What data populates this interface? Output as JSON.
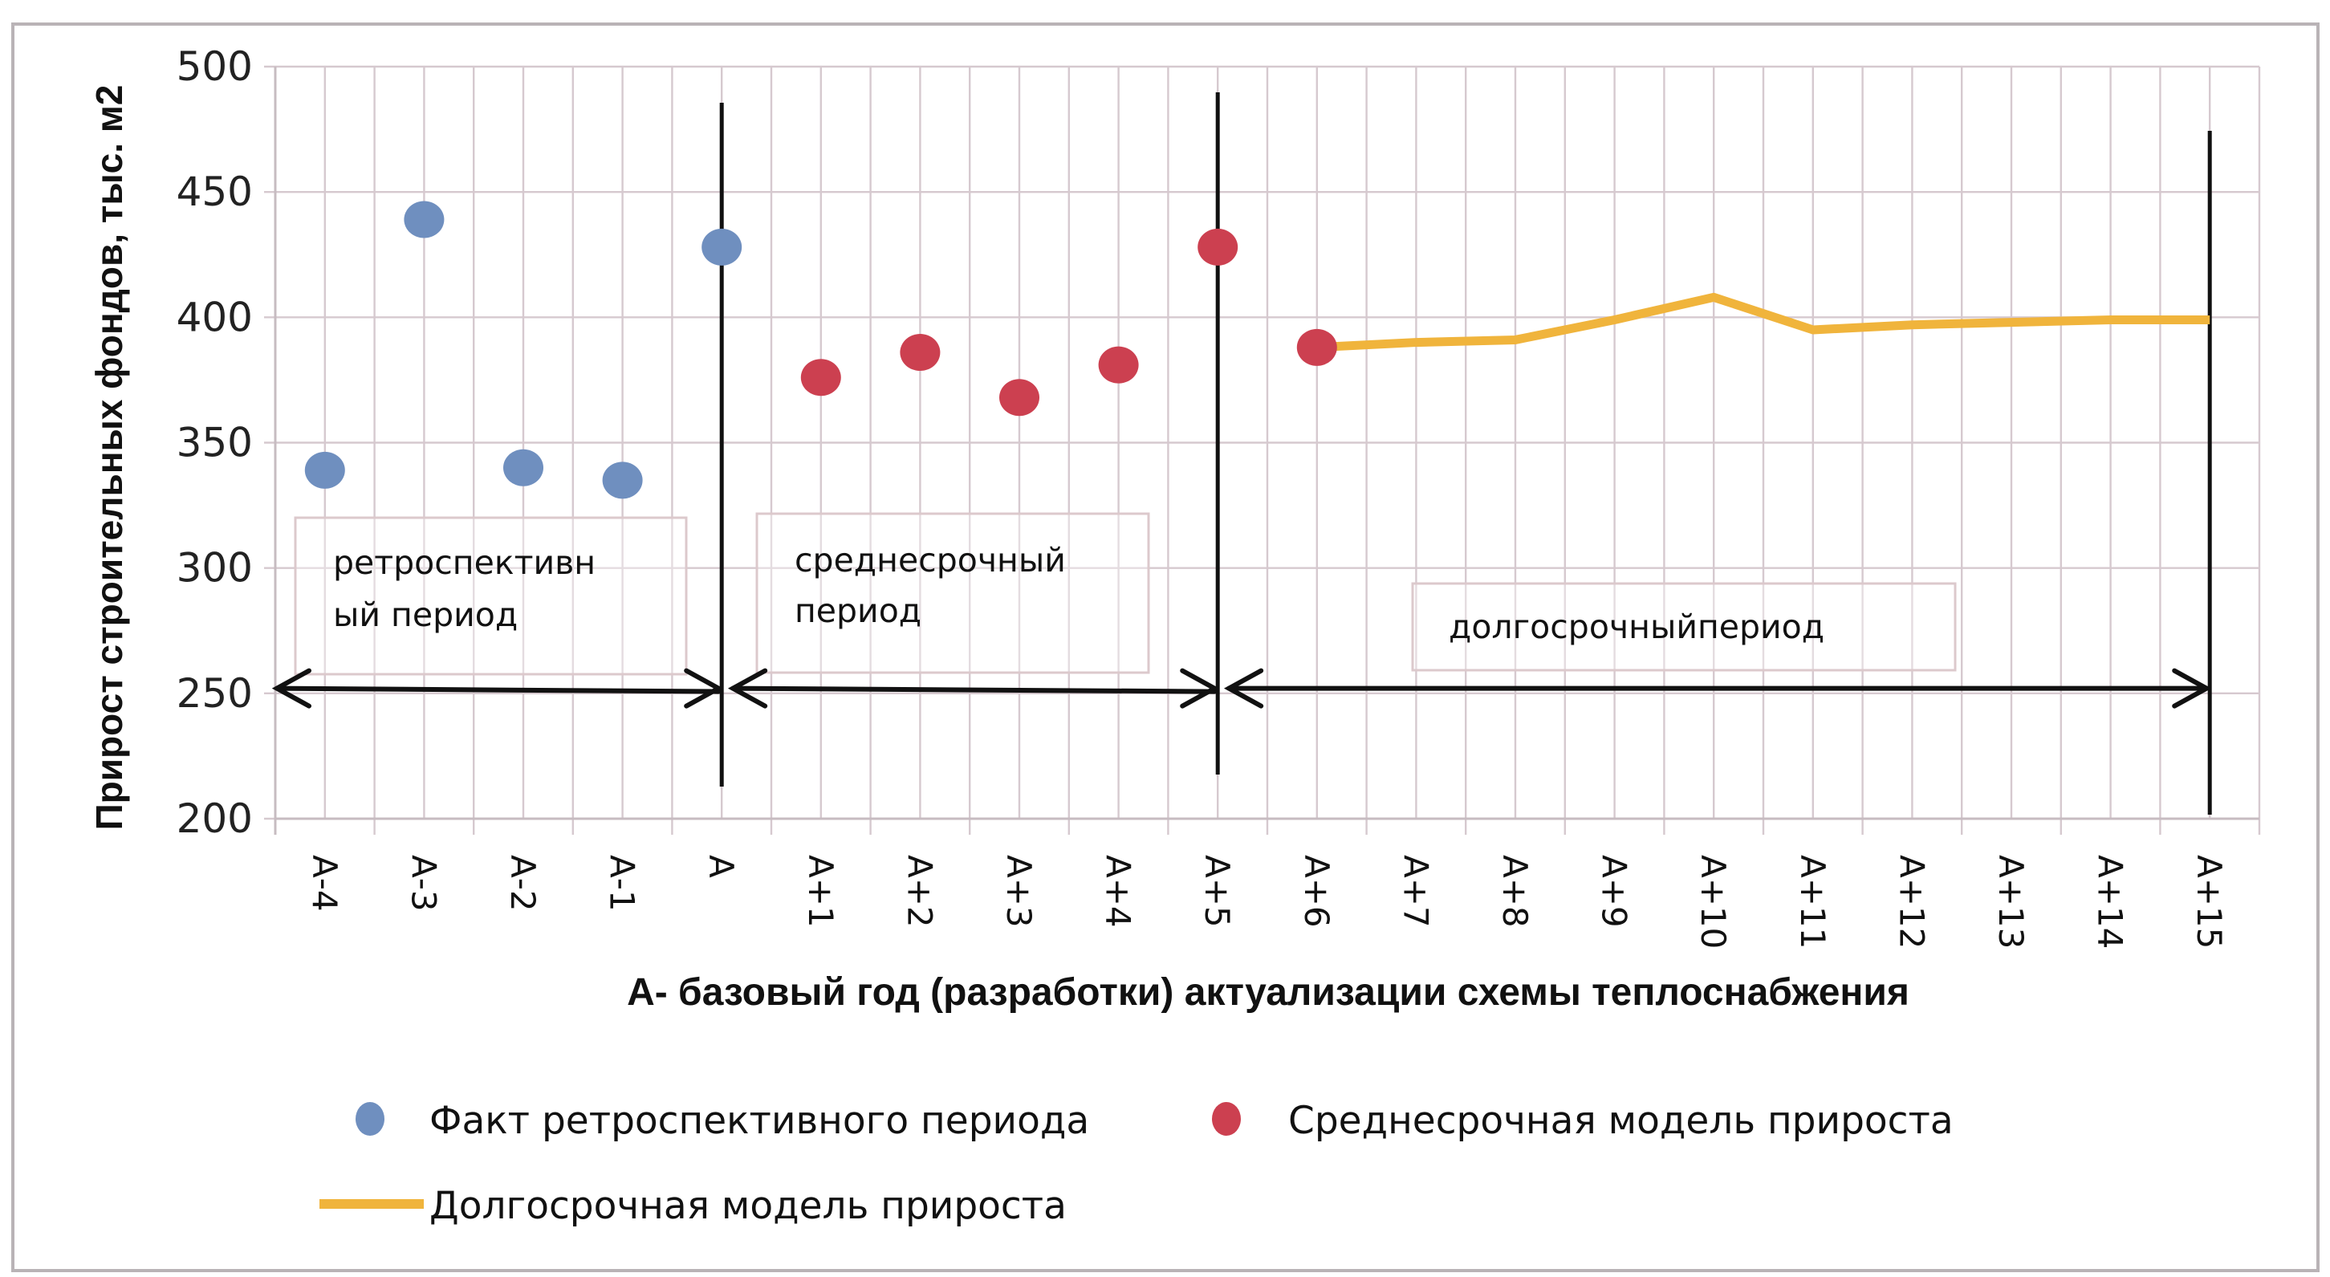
{
  "chart_data": {
    "type": "scatter",
    "title": "",
    "xlabel": "А- базовый год (разработки) актуализации схемы теплоснабжения",
    "ylabel": "Прирост строительных фондов, тыс. м2",
    "ylim": [
      200,
      500
    ],
    "yticks": [
      200,
      250,
      300,
      350,
      400,
      450,
      500
    ],
    "grid": true,
    "legend_position": "bottom",
    "categories": [
      "А-4",
      "А-3",
      "А-2",
      "А-1",
      "А",
      "А+1",
      "А+2",
      "А+3",
      "А+4",
      "А+5",
      "А+6",
      "А+7",
      "А+8",
      "А+9",
      "А+10",
      "А+11",
      "А+12",
      "А+13",
      "А+14",
      "А+15"
    ],
    "series": [
      {
        "name": "Факт ретроспективного периода",
        "kind": "scatter",
        "color": "#6f8fbf",
        "points": [
          {
            "x": "А-4",
            "y": 339
          },
          {
            "x": "А-3",
            "y": 439
          },
          {
            "x": "А-2",
            "y": 340
          },
          {
            "x": "А-1",
            "y": 335
          },
          {
            "x": "А",
            "y": 428
          }
        ]
      },
      {
        "name": "Среднесрочная модель прироста",
        "kind": "scatter",
        "color": "#cc4050",
        "points": [
          {
            "x": "А+1",
            "y": 376
          },
          {
            "x": "А+2",
            "y": 386
          },
          {
            "x": "А+3",
            "y": 368
          },
          {
            "x": "А+4",
            "y": 381
          },
          {
            "x": "А+5",
            "y": 428
          },
          {
            "x": "А+6",
            "y": 388
          }
        ]
      },
      {
        "name": "Долгосрочная модель прироста",
        "kind": "line",
        "color": "#f0b43c",
        "points": [
          {
            "x": "А+6",
            "y": 388
          },
          {
            "x": "А+7",
            "y": 390
          },
          {
            "x": "А+8",
            "y": 391
          },
          {
            "x": "А+9",
            "y": 399
          },
          {
            "x": "А+10",
            "y": 408
          },
          {
            "x": "А+11",
            "y": 395
          },
          {
            "x": "А+12",
            "y": 397
          },
          {
            "x": "А+13",
            "y": 398
          },
          {
            "x": "А+14",
            "y": 399
          },
          {
            "x": "А+15",
            "y": 399
          }
        ]
      }
    ],
    "annotations": {
      "period_labels": [
        {
          "lines": [
            "ретроспективн",
            "ый период"
          ],
          "from": "А-4",
          "to": "А"
        },
        {
          "lines": [
            "среднесрочный",
            "период"
          ],
          "from": "А",
          "to": "А+5"
        },
        {
          "lines": [
            "долгосрочныйпериод"
          ],
          "from": "А+5",
          "to": "А+15"
        }
      ],
      "dividers": [
        "А",
        "А+5",
        "А+15"
      ],
      "arrow_level": 252
    },
    "legend": [
      {
        "label": "Факт ретроспективного периода",
        "marker": "dot",
        "color": "#6f8fbf"
      },
      {
        "label": "Среднесрочная модель прироста",
        "marker": "dot",
        "color": "#cc4050"
      },
      {
        "label": "Долгосрочная модель прироста",
        "marker": "line",
        "color": "#f0b43c"
      }
    ]
  }
}
